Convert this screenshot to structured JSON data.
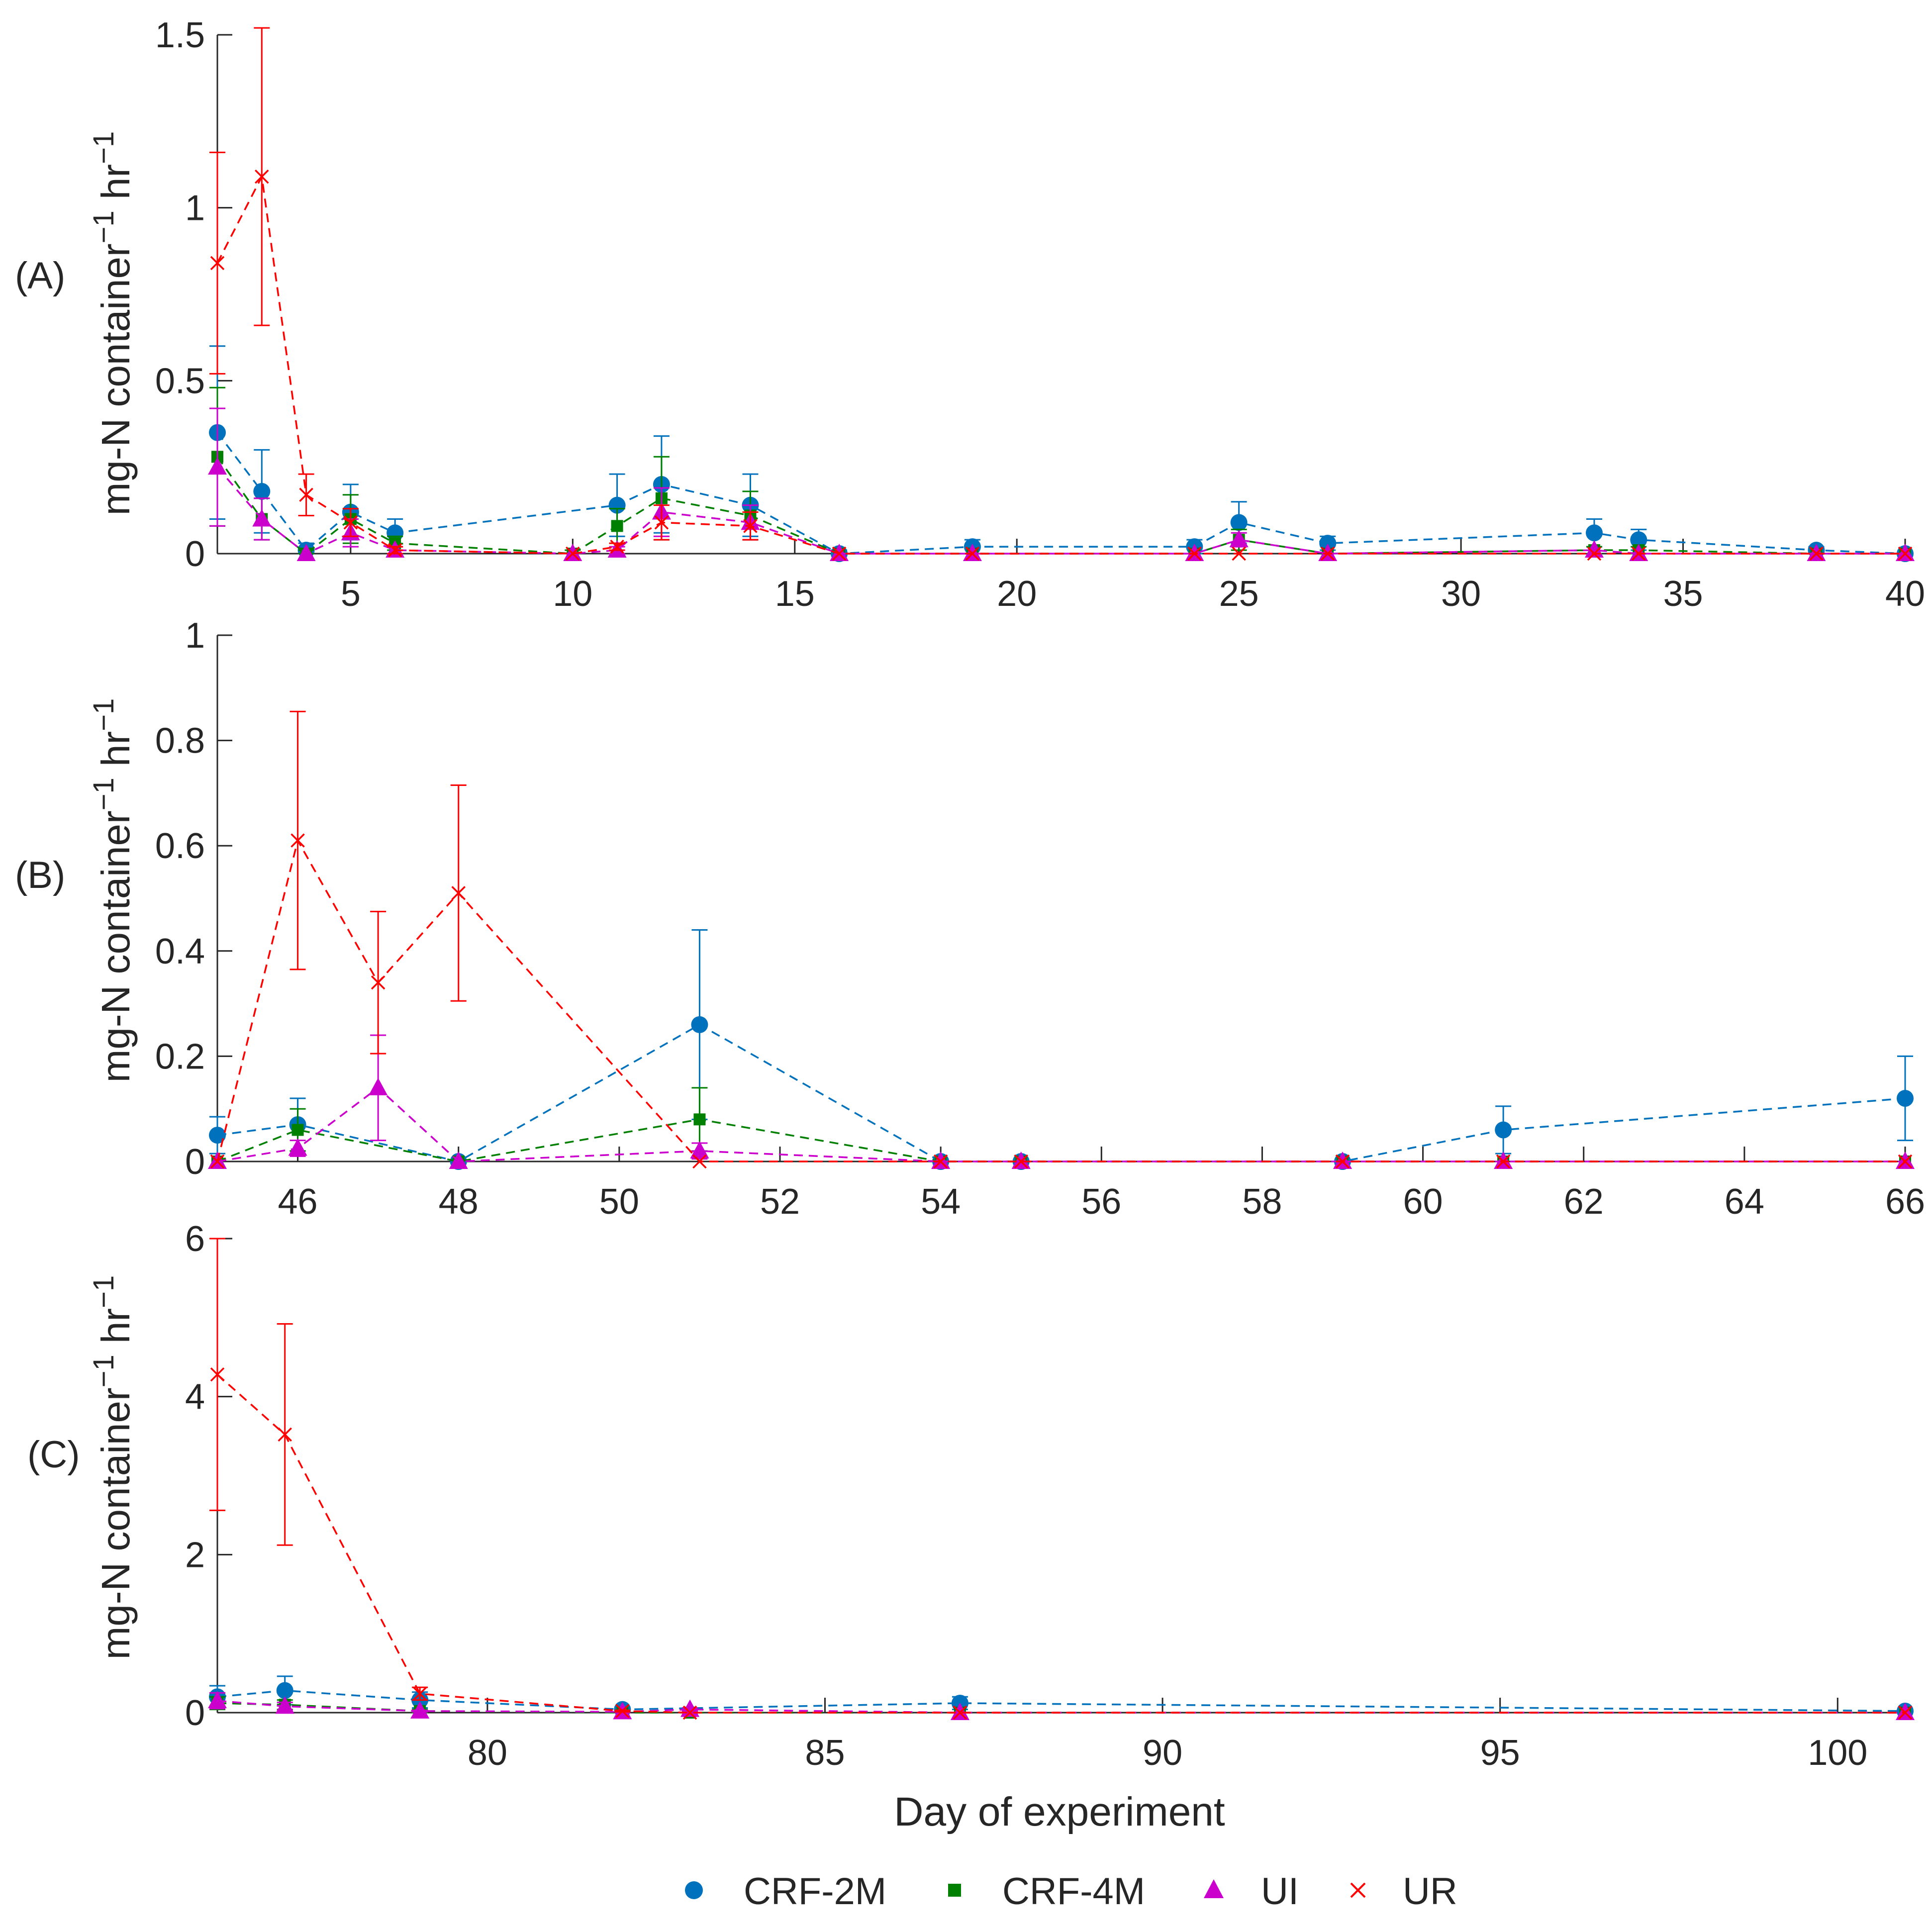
{
  "figure": {
    "xlabel": "Day of experiment",
    "ylabel_main": "mg-N container",
    "ylabel_sup1": "−1",
    "ylabel_unit": " hr",
    "ylabel_sup2": "−1"
  },
  "legend": {
    "items": [
      {
        "label": "CRF-2M",
        "color": "#0072BD",
        "marker": "circle"
      },
      {
        "label": "CRF-4M",
        "color": "#008000",
        "marker": "square"
      },
      {
        "label": "UI",
        "color": "#CC00CC",
        "marker": "triangle"
      },
      {
        "label": "UR",
        "color": "#FF0000",
        "marker": "x"
      }
    ]
  },
  "chart_data": [
    {
      "type": "line",
      "panel_label": "(A)",
      "title": "",
      "xlabel": "",
      "ylabel": "mg-N container−1 hr−1",
      "xlim": [
        2,
        40
      ],
      "ylim": [
        0,
        1.5
      ],
      "xticks": [
        5,
        10,
        15,
        20,
        25,
        30,
        35,
        40
      ],
      "yticks": [
        0,
        0.5,
        1,
        1.5
      ],
      "ytick_labels": [
        "0",
        "0.5",
        "1",
        "1.5"
      ],
      "series": [
        {
          "name": "CRF-2M",
          "x": [
            2,
            3,
            4,
            5,
            6,
            11,
            12,
            14,
            16,
            19,
            24,
            25,
            27,
            33,
            34,
            38,
            40
          ],
          "y": [
            0.35,
            0.18,
            0.01,
            0.12,
            0.06,
            0.14,
            0.2,
            0.14,
            0.0,
            0.02,
            0.02,
            0.09,
            0.03,
            0.06,
            0.04,
            0.01,
            0.0
          ],
          "err": [
            0.25,
            0.12,
            0.02,
            0.08,
            0.04,
            0.09,
            0.14,
            0.09,
            0.01,
            0.02,
            0.02,
            0.06,
            0.02,
            0.04,
            0.03,
            0.01,
            0.0
          ]
        },
        {
          "name": "CRF-4M",
          "x": [
            2,
            3,
            4,
            5,
            6,
            10,
            11,
            12,
            14,
            16,
            19,
            24,
            25,
            27,
            33,
            34,
            38,
            40
          ],
          "y": [
            0.28,
            0.1,
            0.0,
            0.1,
            0.03,
            0.0,
            0.08,
            0.16,
            0.11,
            0.0,
            0.0,
            0.0,
            0.04,
            0.0,
            0.01,
            0.01,
            0.0,
            0.0
          ],
          "err": [
            0.2,
            0.06,
            0.01,
            0.07,
            0.02,
            0.01,
            0.05,
            0.12,
            0.07,
            0.0,
            0.0,
            0.0,
            0.03,
            0.0,
            0.01,
            0.01,
            0.0,
            0.0
          ]
        },
        {
          "name": "UI",
          "x": [
            2,
            3,
            4,
            5,
            6,
            10,
            11,
            12,
            14,
            16,
            19,
            24,
            25,
            27,
            33,
            34,
            38,
            40
          ],
          "y": [
            0.25,
            0.1,
            0.0,
            0.06,
            0.01,
            0.0,
            0.01,
            0.12,
            0.09,
            0.0,
            0.0,
            0.0,
            0.04,
            0.0,
            0.01,
            0.0,
            0.0,
            0.0
          ],
          "err": [
            0.17,
            0.06,
            0.0,
            0.04,
            0.01,
            0.0,
            0.01,
            0.07,
            0.05,
            0.0,
            0.0,
            0.0,
            0.02,
            0.0,
            0.0,
            0.0,
            0.0,
            0.0
          ]
        },
        {
          "name": "UR",
          "x": [
            2,
            3,
            4,
            5,
            6,
            10,
            11,
            12,
            14,
            16,
            19,
            24,
            25,
            27,
            33,
            34,
            38,
            40
          ],
          "y": [
            0.84,
            1.09,
            0.17,
            0.09,
            0.01,
            0.0,
            0.02,
            0.09,
            0.08,
            0.0,
            0.0,
            0.0,
            0.0,
            0.0,
            0.0,
            0.0,
            0.0,
            0.0
          ],
          "err": [
            0.32,
            0.43,
            0.06,
            0.04,
            0.01,
            0.0,
            0.01,
            0.05,
            0.04,
            0.0,
            0.0,
            0.0,
            0.0,
            0.0,
            0.0,
            0.0,
            0.0,
            0.0
          ]
        }
      ]
    },
    {
      "type": "line",
      "panel_label": "(B)",
      "title": "",
      "xlabel": "",
      "ylabel": "mg-N container−1 hr−1",
      "xlim": [
        45,
        66
      ],
      "ylim": [
        0,
        1
      ],
      "xticks": [
        46,
        48,
        50,
        52,
        54,
        56,
        58,
        60,
        62,
        64,
        66
      ],
      "yticks": [
        0,
        0.2,
        0.4,
        0.6,
        0.8,
        1
      ],
      "ytick_labels": [
        "0",
        "0.2",
        "0.4",
        "0.6",
        "0.8",
        "1"
      ],
      "series": [
        {
          "name": "CRF-2M",
          "x": [
            45,
            46,
            48,
            51,
            54,
            55,
            59,
            61,
            66
          ],
          "y": [
            0.05,
            0.07,
            0.0,
            0.26,
            0.0,
            0.0,
            0.0,
            0.06,
            0.12
          ],
          "err": [
            0.035,
            0.05,
            0.0,
            0.18,
            0.0,
            0.0,
            0.0,
            0.045,
            0.08
          ]
        },
        {
          "name": "CRF-4M",
          "x": [
            45,
            46,
            48,
            51,
            54,
            55,
            59,
            61,
            66
          ],
          "y": [
            0.0,
            0.06,
            0.0,
            0.08,
            0.0,
            0.0,
            0.0,
            0.0,
            0.0
          ],
          "err": [
            0.0,
            0.04,
            0.0,
            0.06,
            0.0,
            0.0,
            0.0,
            0.0,
            0.0
          ]
        },
        {
          "name": "UI",
          "x": [
            45,
            46,
            47,
            48,
            51,
            54,
            55,
            59,
            61,
            66
          ],
          "y": [
            0.0,
            0.025,
            0.14,
            0.0,
            0.02,
            0.0,
            0.0,
            0.0,
            0.0,
            0.0
          ],
          "err": [
            0.0,
            0.015,
            0.1,
            0.0,
            0.015,
            0.0,
            0.0,
            0.0,
            0.0,
            0.0
          ]
        },
        {
          "name": "UR",
          "x": [
            45,
            46,
            47,
            48,
            51,
            54,
            55,
            59,
            61,
            66
          ],
          "y": [
            0.0,
            0.61,
            0.34,
            0.51,
            0.0,
            0.0,
            0.0,
            0.0,
            0.0,
            0.0
          ],
          "err": [
            0.0,
            0.245,
            0.135,
            0.205,
            0.0,
            0.0,
            0.0,
            0.0,
            0.0,
            0.0
          ]
        }
      ]
    },
    {
      "type": "line",
      "panel_label": "(C)",
      "title": "",
      "xlabel": "Day of experiment",
      "ylabel": "mg-N container−1 hr−1",
      "xlim": [
        76,
        101
      ],
      "ylim": [
        0,
        6
      ],
      "xticks": [
        80,
        85,
        90,
        95,
        100
      ],
      "yticks": [
        0,
        2,
        4,
        6
      ],
      "ytick_labels": [
        "0",
        "2",
        "4",
        "6"
      ],
      "series": [
        {
          "name": "CRF-2M",
          "x": [
            76,
            77,
            79,
            82,
            87,
            101
          ],
          "y": [
            0.2,
            0.28,
            0.16,
            0.04,
            0.12,
            0.02
          ],
          "err": [
            0.14,
            0.18,
            0.1,
            0.03,
            0.08,
            0.01
          ]
        },
        {
          "name": "CRF-4M",
          "x": [
            76,
            77,
            79,
            82,
            83,
            87,
            101
          ],
          "y": [
            0.12,
            0.1,
            0.02,
            0.0,
            0.0,
            0.0,
            0.0
          ],
          "err": [
            0.08,
            0.06,
            0.02,
            0.0,
            0.0,
            0.0,
            0.0
          ]
        },
        {
          "name": "UI",
          "x": [
            76,
            77,
            79,
            82,
            83,
            87,
            101
          ],
          "y": [
            0.15,
            0.08,
            0.02,
            0.01,
            0.04,
            0.0,
            0.0
          ],
          "err": [
            0.1,
            0.05,
            0.01,
            0.01,
            0.02,
            0.0,
            0.0
          ]
        },
        {
          "name": "UR",
          "x": [
            76,
            77,
            79,
            82,
            83,
            87,
            101
          ],
          "y": [
            4.28,
            3.52,
            0.24,
            0.02,
            0.0,
            0.0,
            0.0
          ],
          "err": [
            1.72,
            1.4,
            0.08,
            0.01,
            0.0,
            0.0,
            0.0
          ]
        }
      ]
    }
  ]
}
